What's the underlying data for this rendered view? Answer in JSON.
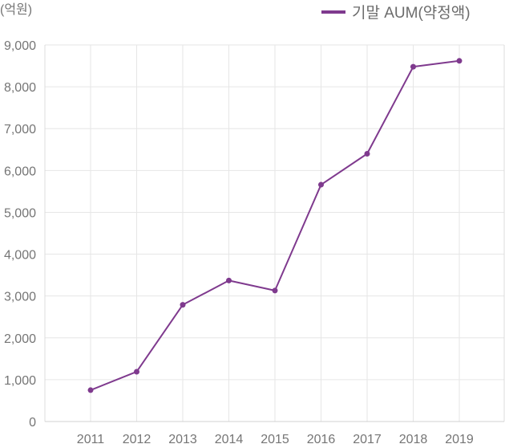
{
  "chart_data": {
    "type": "line",
    "unit_label": "(억원)",
    "x": [
      "2011",
      "2012",
      "2013",
      "2014",
      "2015",
      "2016",
      "2017",
      "2018",
      "2019"
    ],
    "series": [
      {
        "name": "기말 AUM(약정액)",
        "color": "#7f3a8e",
        "values": [
          750,
          1190,
          2790,
          3370,
          3130,
          5660,
          6400,
          8480,
          8620
        ]
      }
    ],
    "y_ticks": [
      "0",
      "1,000",
      "2,000",
      "3,000",
      "4,000",
      "5,000",
      "6,000",
      "7,000",
      "8,000",
      "9,000"
    ],
    "ylim": [
      0,
      9000
    ],
    "grid": true,
    "legend_position": "top-right"
  }
}
